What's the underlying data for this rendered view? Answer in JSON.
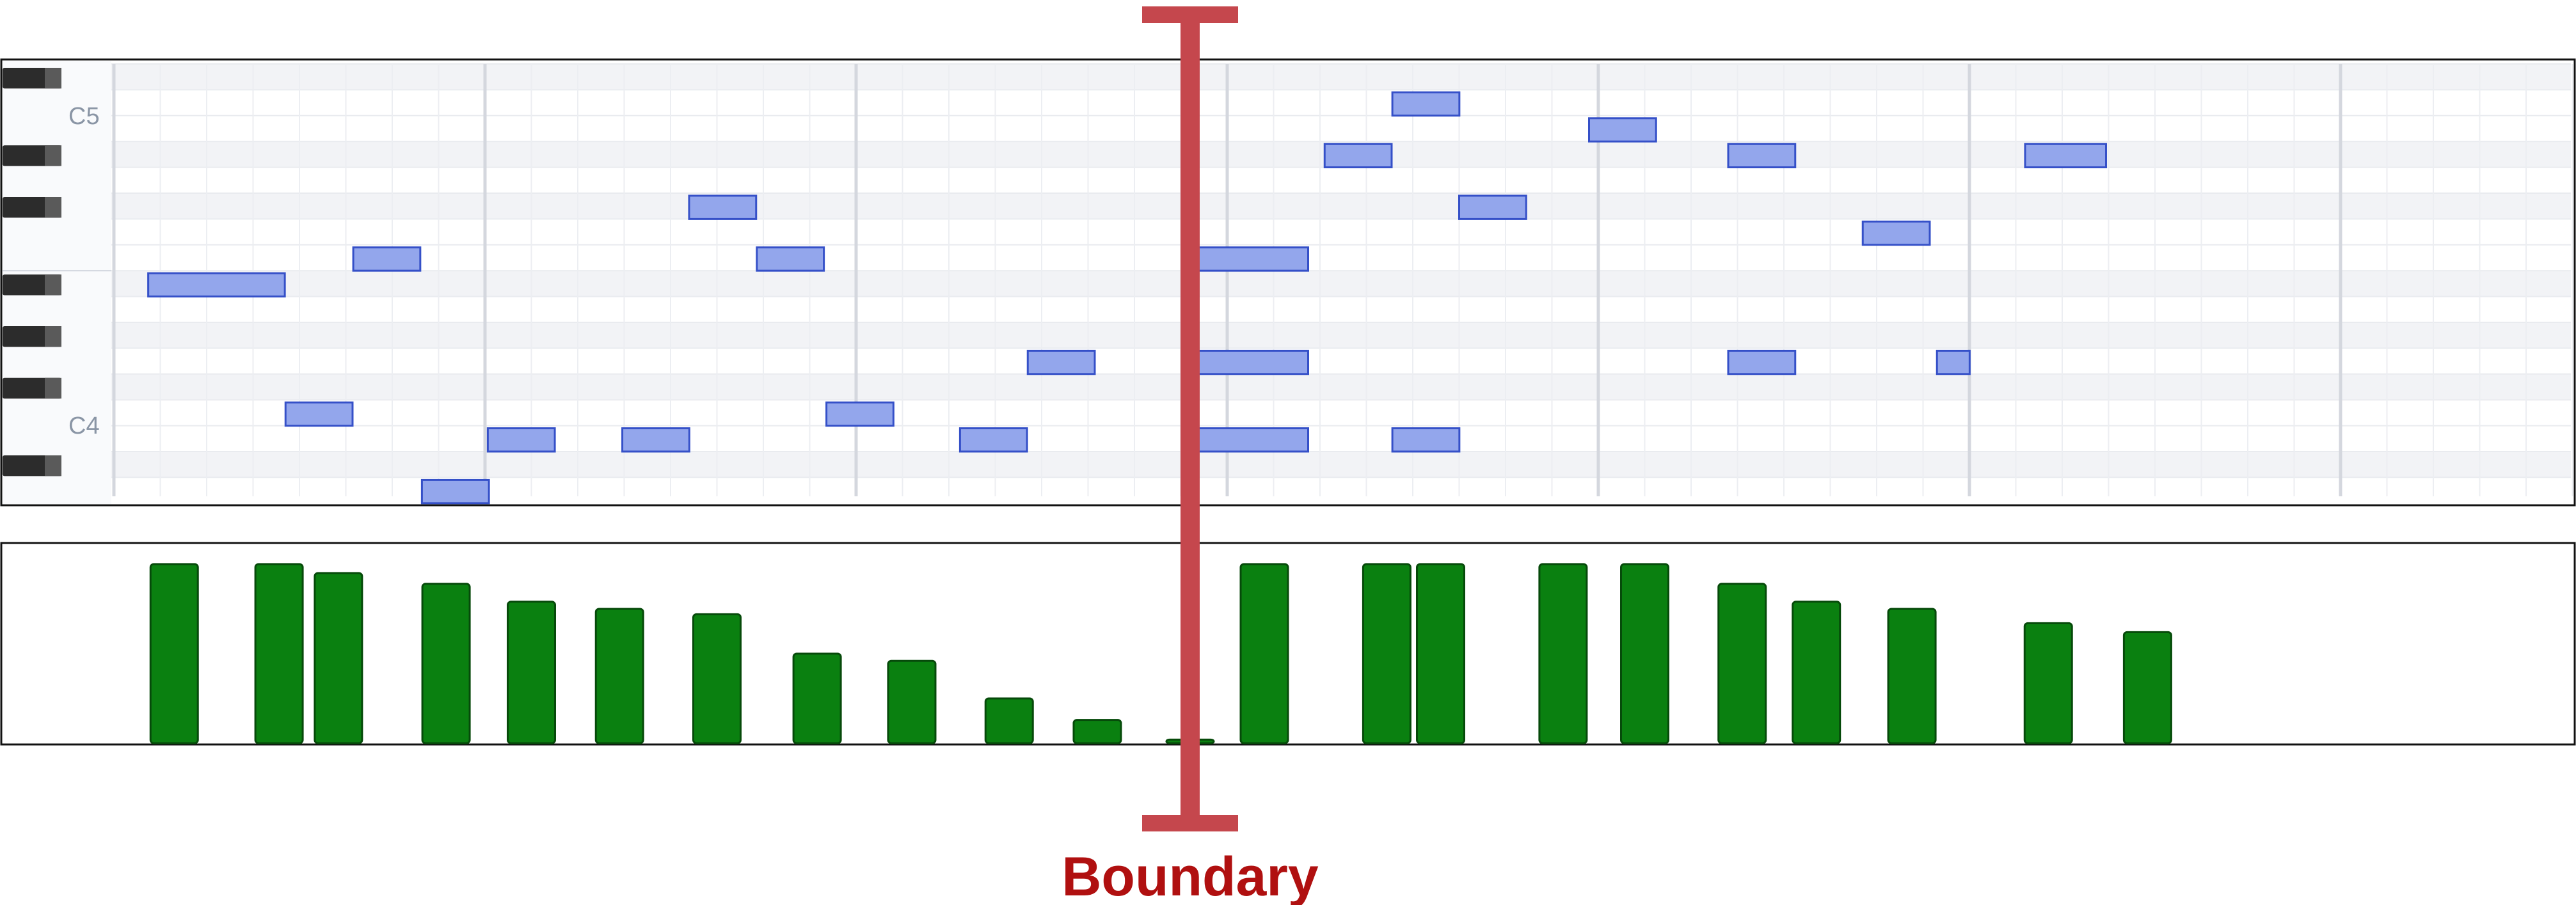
{
  "piano_roll": {
    "octave_labels": [
      "C5",
      "C4"
    ],
    "note_color": "#93a6ec",
    "note_border": "#3550c8",
    "notes": [
      {
        "start": 0.37,
        "length": 1.5,
        "pitch": 70
      },
      {
        "start": 2.58,
        "length": 0.75,
        "pitch": 71
      },
      {
        "start": 1.85,
        "length": 0.75,
        "pitch": 65
      },
      {
        "start": 3.32,
        "length": 0.75,
        "pitch": 62
      },
      {
        "start": 4.03,
        "length": 0.75,
        "pitch": 64
      },
      {
        "start": 5.48,
        "length": 0.75,
        "pitch": 64
      },
      {
        "start": 6.2,
        "length": 0.75,
        "pitch": 73
      },
      {
        "start": 6.93,
        "length": 0.75,
        "pitch": 71
      },
      {
        "start": 7.68,
        "length": 0.75,
        "pitch": 65
      },
      {
        "start": 9.12,
        "length": 0.75,
        "pitch": 64
      },
      {
        "start": 9.85,
        "length": 0.75,
        "pitch": 67
      },
      {
        "start": 11.6,
        "length": 1.3,
        "pitch": 71
      },
      {
        "start": 11.6,
        "length": 1.3,
        "pitch": 67
      },
      {
        "start": 11.6,
        "length": 1.3,
        "pitch": 64
      },
      {
        "start": 13.05,
        "length": 0.75,
        "pitch": 75
      },
      {
        "start": 13.78,
        "length": 0.75,
        "pitch": 77
      },
      {
        "start": 13.78,
        "length": 0.75,
        "pitch": 64
      },
      {
        "start": 14.5,
        "length": 0.75,
        "pitch": 73
      },
      {
        "start": 15.9,
        "length": 0.75,
        "pitch": 76
      },
      {
        "start": 17.4,
        "length": 0.75,
        "pitch": 75
      },
      {
        "start": 17.4,
        "length": 0.75,
        "pitch": 67
      },
      {
        "start": 18.85,
        "length": 0.75,
        "pitch": 72
      },
      {
        "start": 19.65,
        "length": 0.38,
        "pitch": 67
      },
      {
        "start": 20.6,
        "length": 0.9,
        "pitch": 75
      }
    ]
  },
  "velocity_lane": {
    "bar_color": "#0a8010",
    "bar_border": "#064a0a",
    "bars": [
      {
        "x": 0.65,
        "level": 1.0
      },
      {
        "x": 1.78,
        "level": 1.0
      },
      {
        "x": 2.42,
        "level": 0.95
      },
      {
        "x": 3.58,
        "level": 0.89
      },
      {
        "x": 4.5,
        "level": 0.79
      },
      {
        "x": 5.45,
        "level": 0.75
      },
      {
        "x": 6.5,
        "level": 0.72
      },
      {
        "x": 7.58,
        "level": 0.5
      },
      {
        "x": 8.6,
        "level": 0.46
      },
      {
        "x": 9.65,
        "level": 0.25
      },
      {
        "x": 10.6,
        "level": 0.13
      },
      {
        "x": 11.6,
        "level": 0.02
      },
      {
        "x": 12.4,
        "level": 1.0
      },
      {
        "x": 13.72,
        "level": 1.0
      },
      {
        "x": 14.3,
        "level": 1.0
      },
      {
        "x": 15.62,
        "level": 1.0
      },
      {
        "x": 16.5,
        "level": 1.0
      },
      {
        "x": 17.55,
        "level": 0.89
      },
      {
        "x": 18.35,
        "level": 0.79
      },
      {
        "x": 19.38,
        "level": 0.75
      },
      {
        "x": 20.85,
        "level": 0.67
      },
      {
        "x": 21.92,
        "level": 0.62
      }
    ]
  },
  "boundary": {
    "label": "Boundary",
    "position": 11.6,
    "color": "#c5474d"
  }
}
